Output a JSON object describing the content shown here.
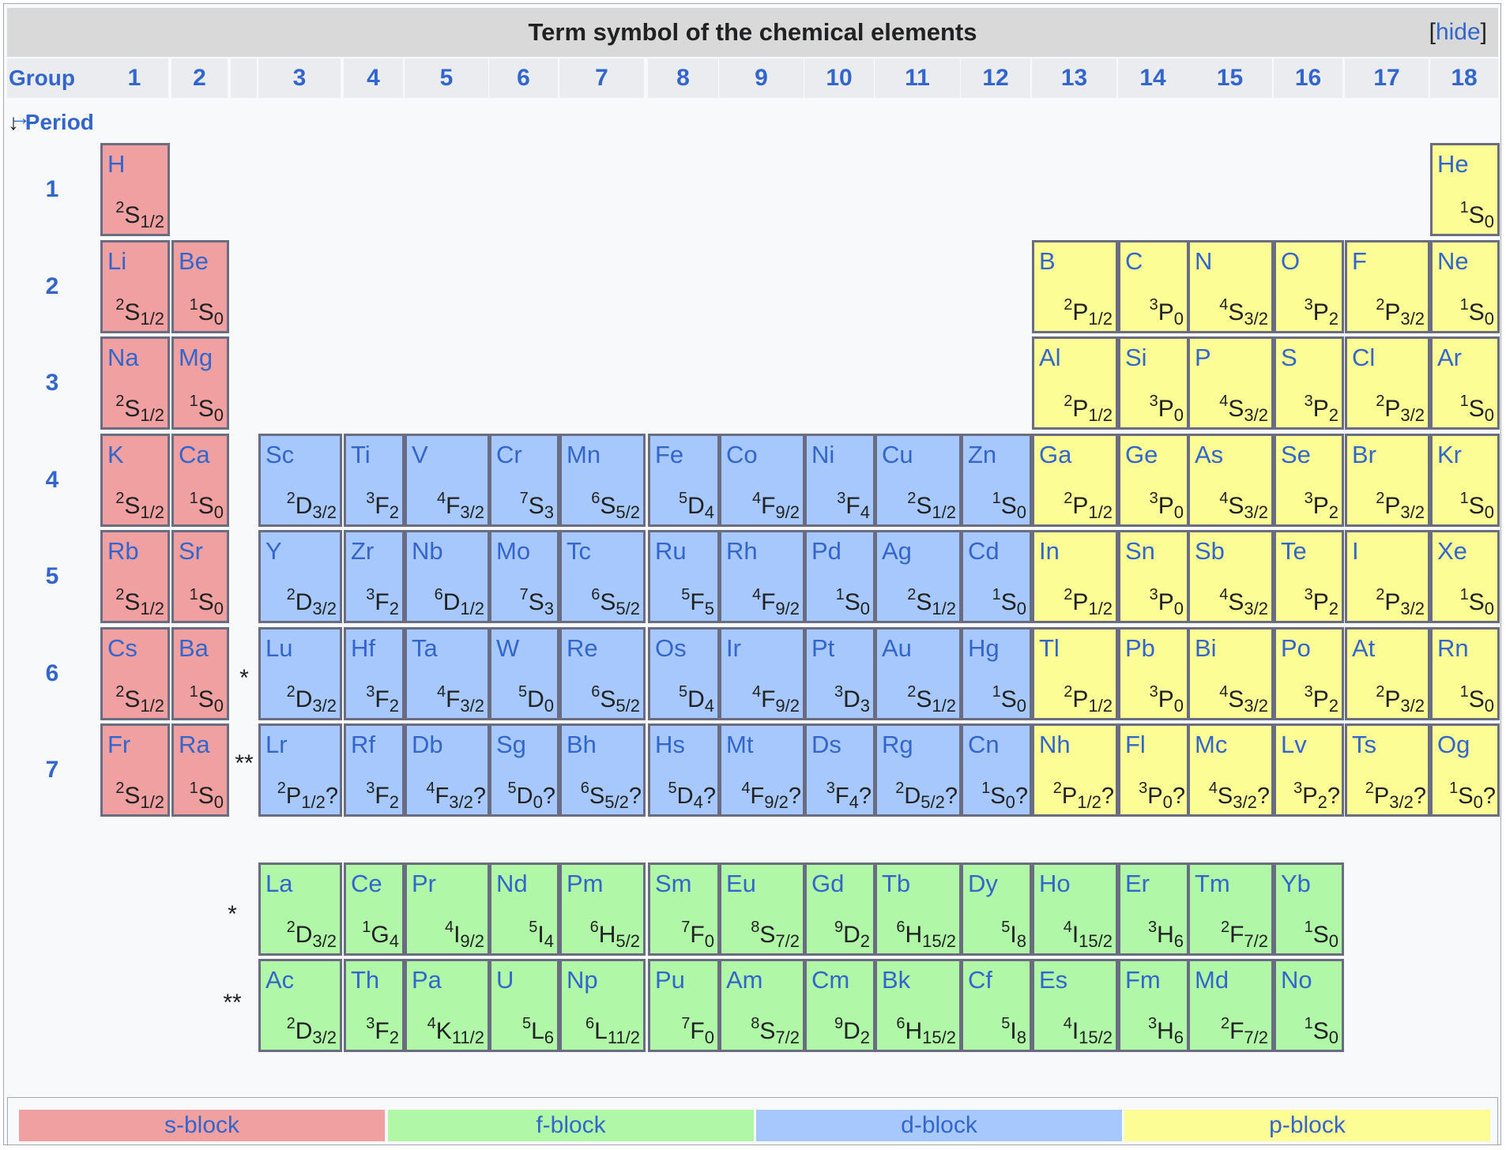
{
  "title": "Term symbol of the chemical elements",
  "hide": {
    "open": "[",
    "label": "hide",
    "close": "]"
  },
  "group_label": "Group →",
  "groups": [
    "1",
    "2",
    "3",
    "4",
    "5",
    "6",
    "7",
    "8",
    "9",
    "10",
    "11",
    "12",
    "13",
    "14",
    "15",
    "16",
    "17",
    "18"
  ],
  "period_label": {
    "arrow": "↓",
    "text": "Period"
  },
  "periods": [
    "1",
    "2",
    "3",
    "4",
    "5",
    "6",
    "7"
  ],
  "markers": {
    "lanthanide": "*",
    "actinide": "**"
  },
  "colors": {
    "s": "#f0a0a0",
    "p": "#fdfd96",
    "d": "#a6c8fc",
    "f": "#b0f8a8",
    "border": "#6a6d82",
    "link": "#3366cc"
  },
  "rows": [
    [
      [
        "H",
        "2",
        "S",
        "1/2",
        ""
      ],
      null,
      null,
      null,
      null,
      null,
      null,
      null,
      null,
      null,
      null,
      null,
      null,
      null,
      null,
      null,
      null,
      [
        "He",
        "1",
        "S",
        "0",
        ""
      ]
    ],
    [
      [
        "Li",
        "2",
        "S",
        "1/2",
        ""
      ],
      [
        "Be",
        "1",
        "S",
        "0",
        ""
      ],
      null,
      null,
      null,
      null,
      null,
      null,
      null,
      null,
      null,
      null,
      [
        "B",
        "2",
        "P",
        "1/2",
        ""
      ],
      [
        "C",
        "3",
        "P",
        "0",
        ""
      ],
      [
        "N",
        "4",
        "S",
        "3/2",
        ""
      ],
      [
        "O",
        "3",
        "P",
        "2",
        ""
      ],
      [
        "F",
        "2",
        "P",
        "3/2",
        ""
      ],
      [
        "Ne",
        "1",
        "S",
        "0",
        ""
      ]
    ],
    [
      [
        "Na",
        "2",
        "S",
        "1/2",
        ""
      ],
      [
        "Mg",
        "1",
        "S",
        "0",
        ""
      ],
      null,
      null,
      null,
      null,
      null,
      null,
      null,
      null,
      null,
      null,
      [
        "Al",
        "2",
        "P",
        "1/2",
        ""
      ],
      [
        "Si",
        "3",
        "P",
        "0",
        ""
      ],
      [
        "P",
        "4",
        "S",
        "3/2",
        ""
      ],
      [
        "S",
        "3",
        "P",
        "2",
        ""
      ],
      [
        "Cl",
        "2",
        "P",
        "3/2",
        ""
      ],
      [
        "Ar",
        "1",
        "S",
        "0",
        ""
      ]
    ],
    [
      [
        "K",
        "2",
        "S",
        "1/2",
        ""
      ],
      [
        "Ca",
        "1",
        "S",
        "0",
        ""
      ],
      [
        "Sc",
        "2",
        "D",
        "3/2",
        ""
      ],
      [
        "Ti",
        "3",
        "F",
        "2",
        ""
      ],
      [
        "V",
        "4",
        "F",
        "3/2",
        ""
      ],
      [
        "Cr",
        "7",
        "S",
        "3",
        ""
      ],
      [
        "Mn",
        "6",
        "S",
        "5/2",
        ""
      ],
      [
        "Fe",
        "5",
        "D",
        "4",
        ""
      ],
      [
        "Co",
        "4",
        "F",
        "9/2",
        ""
      ],
      [
        "Ni",
        "3",
        "F",
        "4",
        ""
      ],
      [
        "Cu",
        "2",
        "S",
        "1/2",
        ""
      ],
      [
        "Zn",
        "1",
        "S",
        "0",
        ""
      ],
      [
        "Ga",
        "2",
        "P",
        "1/2",
        ""
      ],
      [
        "Ge",
        "3",
        "P",
        "0",
        ""
      ],
      [
        "As",
        "4",
        "S",
        "3/2",
        ""
      ],
      [
        "Se",
        "3",
        "P",
        "2",
        ""
      ],
      [
        "Br",
        "2",
        "P",
        "3/2",
        ""
      ],
      [
        "Kr",
        "1",
        "S",
        "0",
        ""
      ]
    ],
    [
      [
        "Rb",
        "2",
        "S",
        "1/2",
        ""
      ],
      [
        "Sr",
        "1",
        "S",
        "0",
        ""
      ],
      [
        "Y",
        "2",
        "D",
        "3/2",
        ""
      ],
      [
        "Zr",
        "3",
        "F",
        "2",
        ""
      ],
      [
        "Nb",
        "6",
        "D",
        "1/2",
        ""
      ],
      [
        "Mo",
        "7",
        "S",
        "3",
        ""
      ],
      [
        "Tc",
        "6",
        "S",
        "5/2",
        ""
      ],
      [
        "Ru",
        "5",
        "F",
        "5",
        ""
      ],
      [
        "Rh",
        "4",
        "F",
        "9/2",
        ""
      ],
      [
        "Pd",
        "1",
        "S",
        "0",
        ""
      ],
      [
        "Ag",
        "2",
        "S",
        "1/2",
        ""
      ],
      [
        "Cd",
        "1",
        "S",
        "0",
        ""
      ],
      [
        "In",
        "2",
        "P",
        "1/2",
        ""
      ],
      [
        "Sn",
        "3",
        "P",
        "0",
        ""
      ],
      [
        "Sb",
        "4",
        "S",
        "3/2",
        ""
      ],
      [
        "Te",
        "3",
        "P",
        "2",
        ""
      ],
      [
        "I",
        "2",
        "P",
        "3/2",
        ""
      ],
      [
        "Xe",
        "1",
        "S",
        "0",
        ""
      ]
    ],
    [
      [
        "Cs",
        "2",
        "S",
        "1/2",
        ""
      ],
      [
        "Ba",
        "1",
        "S",
        "0",
        ""
      ],
      [
        "Lu",
        "2",
        "D",
        "3/2",
        ""
      ],
      [
        "Hf",
        "3",
        "F",
        "2",
        ""
      ],
      [
        "Ta",
        "4",
        "F",
        "3/2",
        ""
      ],
      [
        "W",
        "5",
        "D",
        "0",
        ""
      ],
      [
        "Re",
        "6",
        "S",
        "5/2",
        ""
      ],
      [
        "Os",
        "5",
        "D",
        "4",
        ""
      ],
      [
        "Ir",
        "4",
        "F",
        "9/2",
        ""
      ],
      [
        "Pt",
        "3",
        "D",
        "3",
        ""
      ],
      [
        "Au",
        "2",
        "S",
        "1/2",
        ""
      ],
      [
        "Hg",
        "1",
        "S",
        "0",
        ""
      ],
      [
        "Tl",
        "2",
        "P",
        "1/2",
        ""
      ],
      [
        "Pb",
        "3",
        "P",
        "0",
        ""
      ],
      [
        "Bi",
        "4",
        "S",
        "3/2",
        ""
      ],
      [
        "Po",
        "3",
        "P",
        "2",
        ""
      ],
      [
        "At",
        "2",
        "P",
        "3/2",
        ""
      ],
      [
        "Rn",
        "1",
        "S",
        "0",
        ""
      ]
    ],
    [
      [
        "Fr",
        "2",
        "S",
        "1/2",
        ""
      ],
      [
        "Ra",
        "1",
        "S",
        "0",
        ""
      ],
      [
        "Lr",
        "2",
        "P",
        "1/2",
        "?"
      ],
      [
        "Rf",
        "3",
        "F",
        "2",
        ""
      ],
      [
        "Db",
        "4",
        "F",
        "3/2",
        "?"
      ],
      [
        "Sg",
        "5",
        "D",
        "0",
        "?"
      ],
      [
        "Bh",
        "6",
        "S",
        "5/2",
        "?"
      ],
      [
        "Hs",
        "5",
        "D",
        "4",
        "?"
      ],
      [
        "Mt",
        "4",
        "F",
        "9/2",
        "?"
      ],
      [
        "Ds",
        "3",
        "F",
        "4",
        "?"
      ],
      [
        "Rg",
        "2",
        "D",
        "5/2",
        "?"
      ],
      [
        "Cn",
        "1",
        "S",
        "0",
        "?"
      ],
      [
        "Nh",
        "2",
        "P",
        "1/2",
        "?"
      ],
      [
        "Fl",
        "3",
        "P",
        "0",
        "?"
      ],
      [
        "Mc",
        "4",
        "S",
        "3/2",
        "?"
      ],
      [
        "Lv",
        "3",
        "P",
        "2",
        "?"
      ],
      [
        "Ts",
        "2",
        "P",
        "3/2",
        "?"
      ],
      [
        "Og",
        "1",
        "S",
        "0",
        "?"
      ]
    ]
  ],
  "lanthanides": [
    [
      "La",
      "2",
      "D",
      "3/2",
      ""
    ],
    [
      "Ce",
      "1",
      "G",
      "4",
      ""
    ],
    [
      "Pr",
      "4",
      "I",
      "9/2",
      ""
    ],
    [
      "Nd",
      "5",
      "I",
      "4",
      ""
    ],
    [
      "Pm",
      "6",
      "H",
      "5/2",
      ""
    ],
    [
      "Sm",
      "7",
      "F",
      "0",
      ""
    ],
    [
      "Eu",
      "8",
      "S",
      "7/2",
      ""
    ],
    [
      "Gd",
      "9",
      "D",
      "2",
      ""
    ],
    [
      "Tb",
      "6",
      "H",
      "15/2",
      ""
    ],
    [
      "Dy",
      "5",
      "I",
      "8",
      ""
    ],
    [
      "Ho",
      "4",
      "I",
      "15/2",
      ""
    ],
    [
      "Er",
      "3",
      "H",
      "6",
      ""
    ],
    [
      "Tm",
      "2",
      "F",
      "7/2",
      ""
    ],
    [
      "Yb",
      "1",
      "S",
      "0",
      ""
    ]
  ],
  "actinides": [
    [
      "Ac",
      "2",
      "D",
      "3/2",
      ""
    ],
    [
      "Th",
      "3",
      "F",
      "2",
      ""
    ],
    [
      "Pa",
      "4",
      "K",
      "11/2",
      ""
    ],
    [
      "U",
      "5",
      "L",
      "6",
      ""
    ],
    [
      "Np",
      "6",
      "L",
      "11/2",
      ""
    ],
    [
      "Pu",
      "7",
      "F",
      "0",
      ""
    ],
    [
      "Am",
      "8",
      "S",
      "7/2",
      ""
    ],
    [
      "Cm",
      "9",
      "D",
      "2",
      ""
    ],
    [
      "Bk",
      "6",
      "H",
      "15/2",
      ""
    ],
    [
      "Cf",
      "5",
      "I",
      "8",
      ""
    ],
    [
      "Es",
      "4",
      "I",
      "15/2",
      ""
    ],
    [
      "Fm",
      "3",
      "H",
      "6",
      ""
    ],
    [
      "Md",
      "2",
      "F",
      "7/2",
      ""
    ],
    [
      "No",
      "1",
      "S",
      "0",
      ""
    ]
  ],
  "legend": [
    {
      "key": "s",
      "label": "s-block"
    },
    {
      "key": "f",
      "label": "f-block"
    },
    {
      "key": "d",
      "label": "d-block"
    },
    {
      "key": "p",
      "label": "p-block"
    }
  ]
}
